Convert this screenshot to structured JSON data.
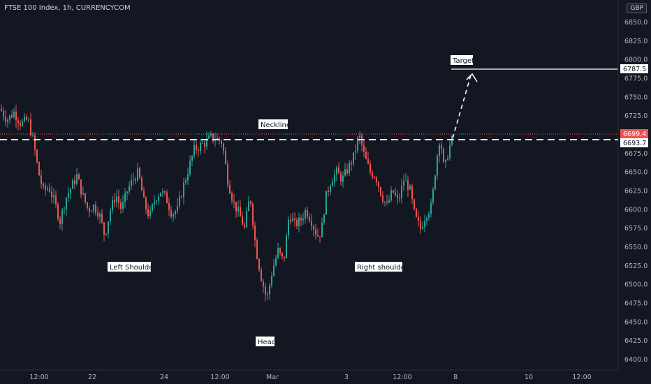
{
  "header": {
    "title": "FTSE 100 Index, 1h, CURRENCYCOM",
    "currency": "GBP"
  },
  "price_axis": {
    "ticks": [
      "6850.0",
      "6825.0",
      "6800.0",
      "6775.0",
      "6750.0",
      "6725.0",
      "6700.0",
      "6675.0",
      "6650.0",
      "6625.0",
      "6600.0",
      "6575.0",
      "6550.0",
      "6525.0",
      "6500.0",
      "6475.0",
      "6450.0",
      "6425.0",
      "6400.0"
    ],
    "last_price": "6699.4",
    "neckline_price": "6693.7",
    "target_price": "6787.5"
  },
  "time_axis": {
    "labels": [
      "12:00",
      "22",
      "24",
      "12:00",
      "Mar",
      "3",
      "12:00",
      "8",
      "10",
      "12:00"
    ]
  },
  "colors": {
    "background": "#131722",
    "up": "#26a69a",
    "down": "#ef5350",
    "text": "#b2b5be",
    "label_bg": "#ffffff",
    "label_text": "#131722"
  },
  "chart_data": {
    "type": "candlestick",
    "title": "FTSE 100 Index, 1h, CURRENCYCOM",
    "ylim": [
      6390,
      6880
    ],
    "neckline": 6693.7,
    "last_price": 6699.4,
    "target": 6787.5,
    "annotations": [
      "Neckline",
      "Target",
      "Left Shoulder",
      "Head",
      "Right shoulder"
    ],
    "path": [
      [
        0,
        6735
      ],
      [
        10,
        6720
      ],
      [
        20,
        6730
      ],
      [
        30,
        6715
      ],
      [
        40,
        6720
      ],
      [
        48,
        6690
      ],
      [
        55,
        6650
      ],
      [
        62,
        6625
      ],
      [
        70,
        6630
      ],
      [
        78,
        6610
      ],
      [
        86,
        6585
      ],
      [
        94,
        6615
      ],
      [
        102,
        6630
      ],
      [
        110,
        6645
      ],
      [
        118,
        6620
      ],
      [
        126,
        6600
      ],
      [
        134,
        6605
      ],
      [
        142,
        6595
      ],
      [
        150,
        6565
      ],
      [
        158,
        6600
      ],
      [
        166,
        6620
      ],
      [
        174,
        6600
      ],
      [
        182,
        6625
      ],
      [
        190,
        6640
      ],
      [
        198,
        6650
      ],
      [
        206,
        6610
      ],
      [
        214,
        6590
      ],
      [
        222,
        6615
      ],
      [
        230,
        6625
      ],
      [
        238,
        6615
      ],
      [
        246,
        6595
      ],
      [
        254,
        6600
      ],
      [
        262,
        6630
      ],
      [
        270,
        6655
      ],
      [
        278,
        6680
      ],
      [
        286,
        6685
      ],
      [
        294,
        6690
      ],
      [
        302,
        6696
      ],
      [
        310,
        6695
      ],
      [
        318,
        6690
      ],
      [
        326,
        6640
      ],
      [
        334,
        6610
      ],
      [
        342,
        6595
      ],
      [
        350,
        6575
      ],
      [
        358,
        6620
      ],
      [
        366,
        6550
      ],
      [
        374,
        6510
      ],
      [
        382,
        6480
      ],
      [
        390,
        6520
      ],
      [
        398,
        6545
      ],
      [
        406,
        6530
      ],
      [
        414,
        6595
      ],
      [
        422,
        6580
      ],
      [
        430,
        6585
      ],
      [
        438,
        6600
      ],
      [
        446,
        6585
      ],
      [
        454,
        6565
      ],
      [
        460,
        6570
      ],
      [
        466,
        6615
      ],
      [
        474,
        6640
      ],
      [
        482,
        6650
      ],
      [
        490,
        6640
      ],
      [
        498,
        6655
      ],
      [
        506,
        6670
      ],
      [
        514,
        6700
      ],
      [
        522,
        6670
      ],
      [
        530,
        6650
      ],
      [
        538,
        6645
      ],
      [
        546,
        6620
      ],
      [
        554,
        6605
      ],
      [
        562,
        6625
      ],
      [
        570,
        6610
      ],
      [
        578,
        6640
      ],
      [
        586,
        6630
      ],
      [
        594,
        6590
      ],
      [
        602,
        6575
      ],
      [
        610,
        6595
      ],
      [
        618,
        6605
      ],
      [
        624,
        6660
      ],
      [
        630,
        6700
      ],
      [
        636,
        6650
      ],
      [
        642,
        6680
      ],
      [
        648,
        6695
      ]
    ]
  },
  "annotations": {
    "neckline": "Neckline",
    "target": "Target",
    "left_shoulder": "Left Shoulder",
    "head": "Head",
    "right_shoulder": "Right shoulder"
  }
}
